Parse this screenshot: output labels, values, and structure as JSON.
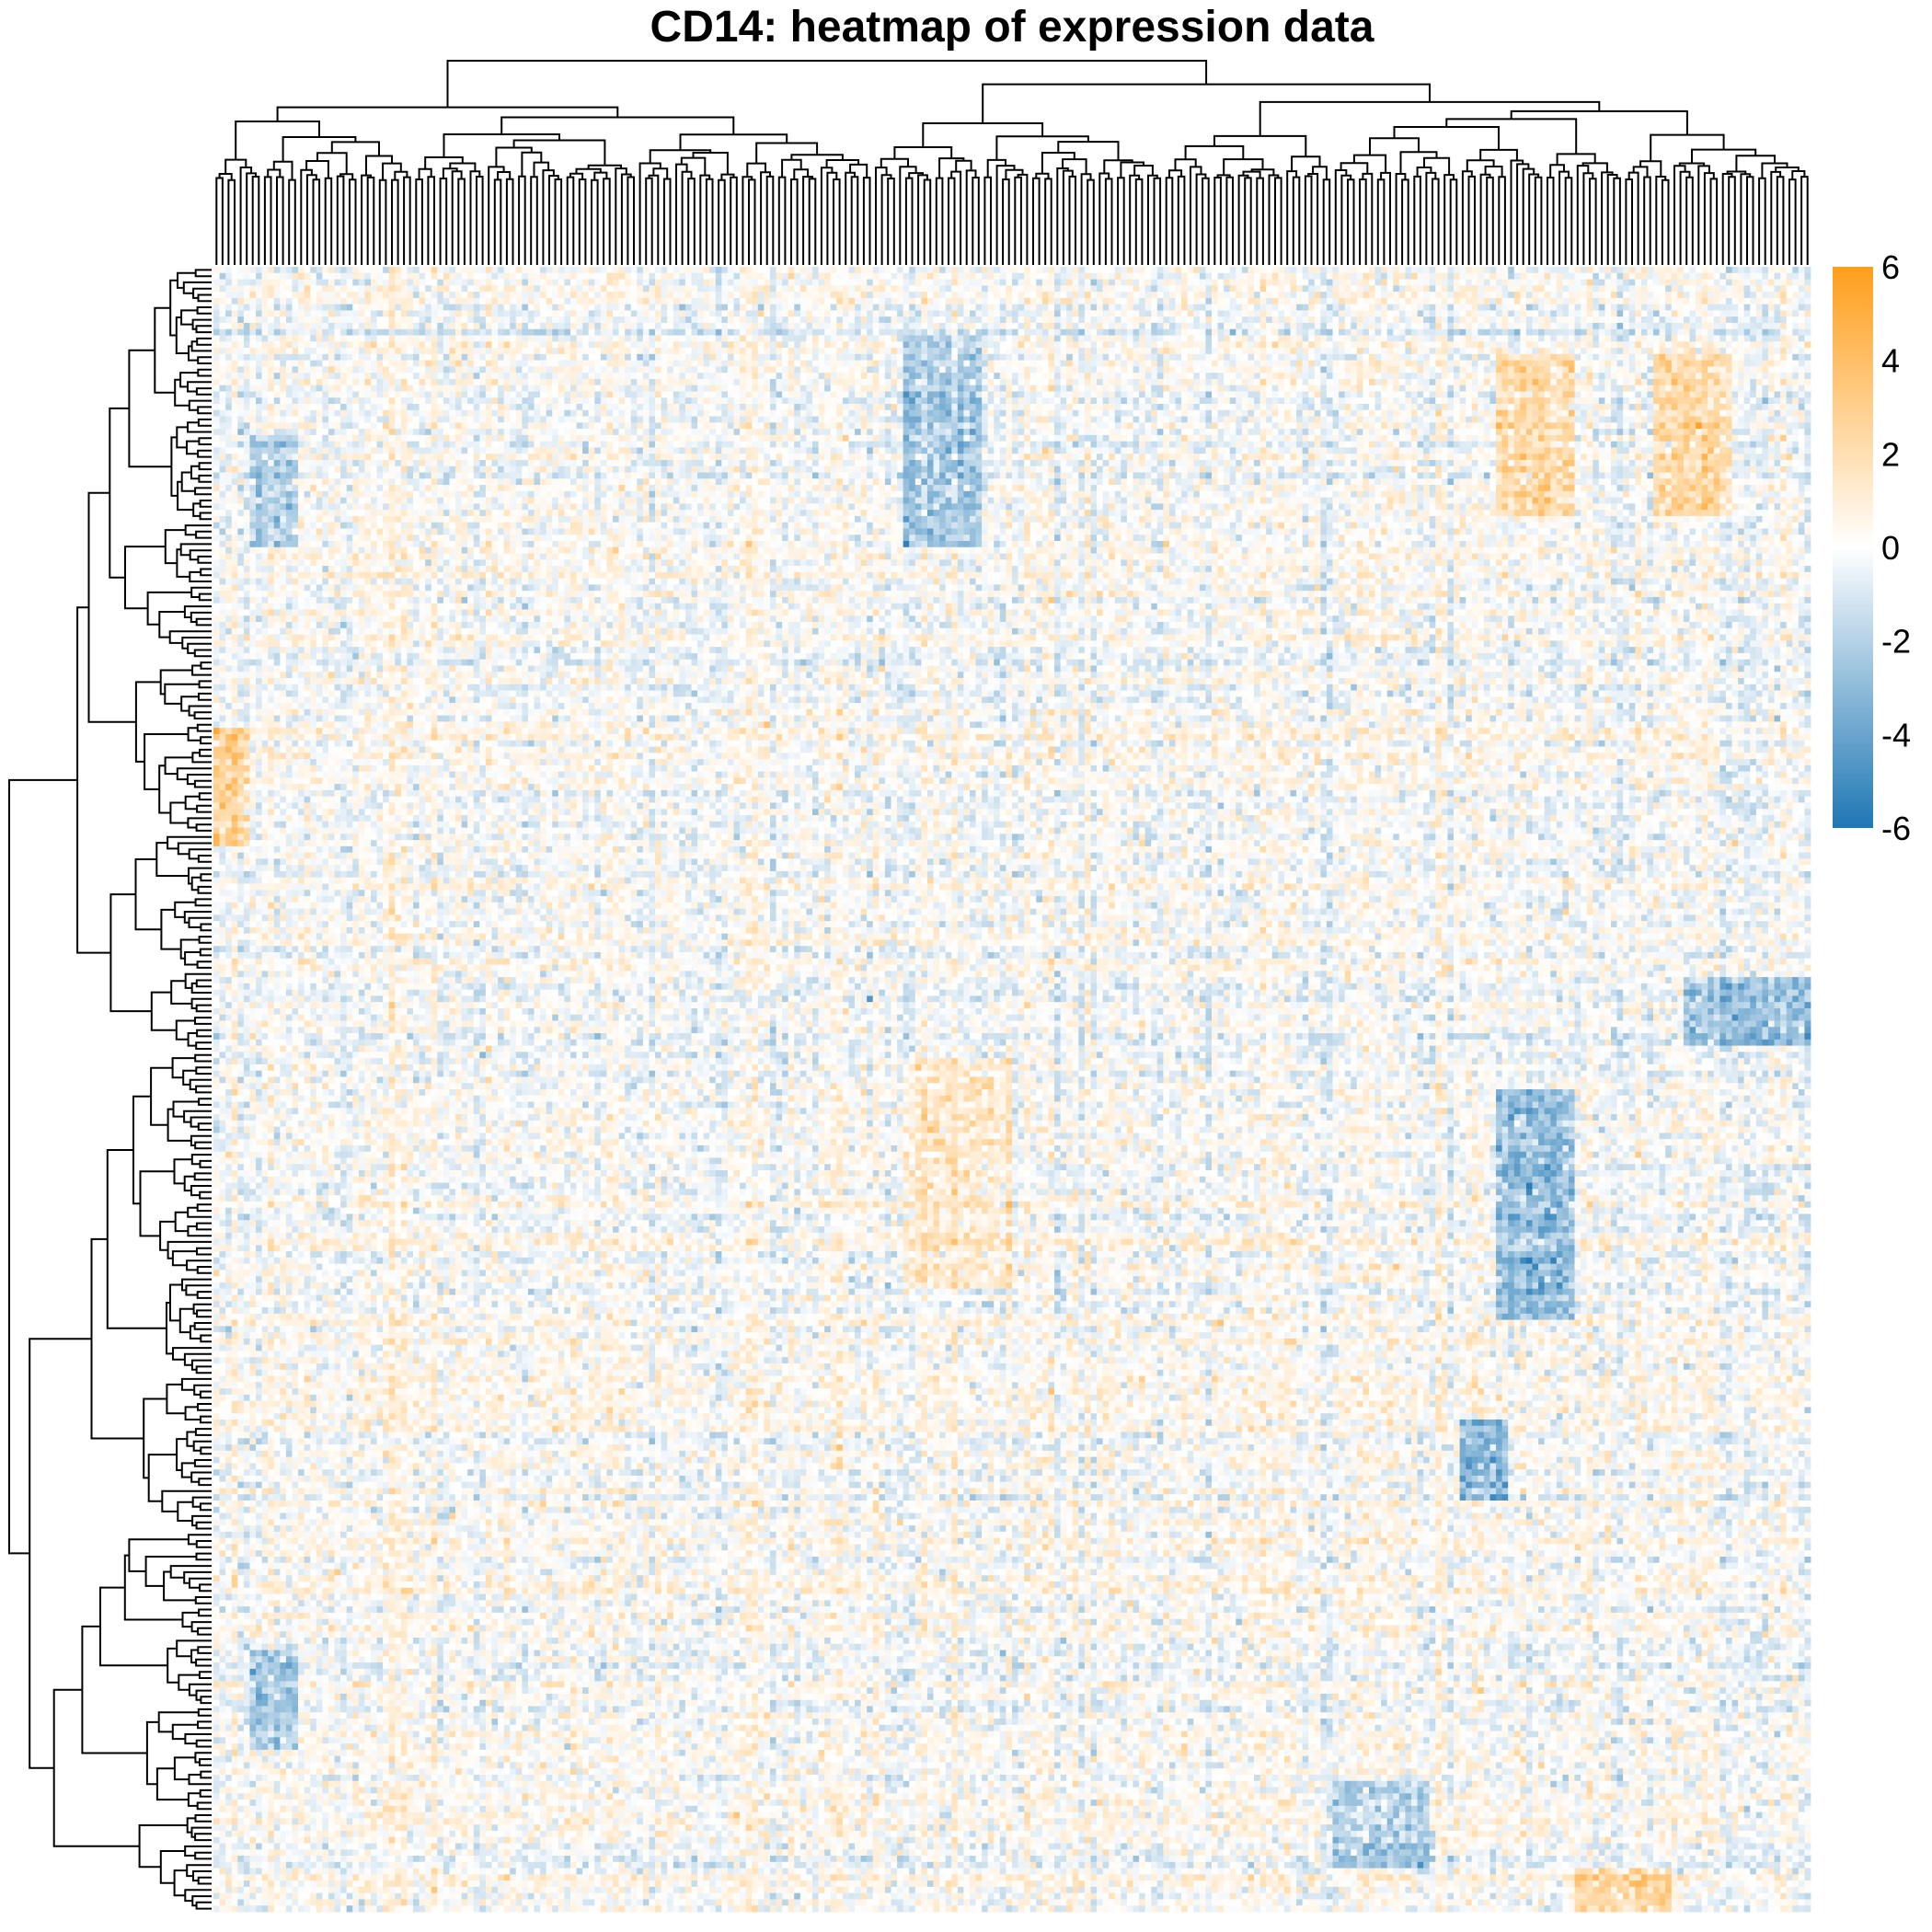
{
  "chart_data": {
    "type": "heatmap",
    "title": "CD14: heatmap of expression data",
    "xlabel": "",
    "ylabel": "",
    "n_columns": 264,
    "n_rows": 264,
    "color_scale": {
      "min": -6,
      "max": 6,
      "low_color": "#1f77b4",
      "mid_color": "#ffffff",
      "high_color": "#ff9e1b",
      "ticks": [
        6,
        4,
        2,
        0,
        -2,
        -4,
        -6
      ],
      "tick_labels": [
        "6",
        "4",
        "2",
        "0",
        "-2",
        "-4",
        "-6"
      ]
    },
    "column_dendrogram": true,
    "row_dendrogram": true,
    "block_structure": [
      {
        "rows": [
          0.04,
          0.17
        ],
        "cols": [
          0.43,
          0.48
        ],
        "value": -2.5
      },
      {
        "rows": [
          0.1,
          0.17
        ],
        "cols": [
          0.02,
          0.05
        ],
        "value": -2.0
      },
      {
        "rows": [
          0.05,
          0.15
        ],
        "cols": [
          0.8,
          0.85
        ],
        "value": 2.5
      },
      {
        "rows": [
          0.05,
          0.15
        ],
        "cols": [
          0.9,
          0.95
        ],
        "value": 2.5
      },
      {
        "rows": [
          0.48,
          0.62
        ],
        "cols": [
          0.43,
          0.5
        ],
        "value": 1.5
      },
      {
        "rows": [
          0.5,
          0.64
        ],
        "cols": [
          0.8,
          0.85
        ],
        "value": -3.0
      },
      {
        "rows": [
          0.43,
          0.47
        ],
        "cols": [
          0.92,
          1.0
        ],
        "value": -2.5
      },
      {
        "rows": [
          0.7,
          0.75
        ],
        "cols": [
          0.78,
          0.81
        ],
        "value": -3.5
      },
      {
        "rows": [
          0.92,
          0.97
        ],
        "cols": [
          0.7,
          0.76
        ],
        "value": -2.5
      },
      {
        "rows": [
          0.97,
          1.0
        ],
        "cols": [
          0.85,
          0.91
        ],
        "value": 2.5
      },
      {
        "rows": [
          0.28,
          0.35
        ],
        "cols": [
          0.0,
          0.02
        ],
        "value": 3.0
      },
      {
        "rows": [
          0.84,
          0.9
        ],
        "cols": [
          0.02,
          0.05
        ],
        "value": -2.5
      }
    ]
  }
}
